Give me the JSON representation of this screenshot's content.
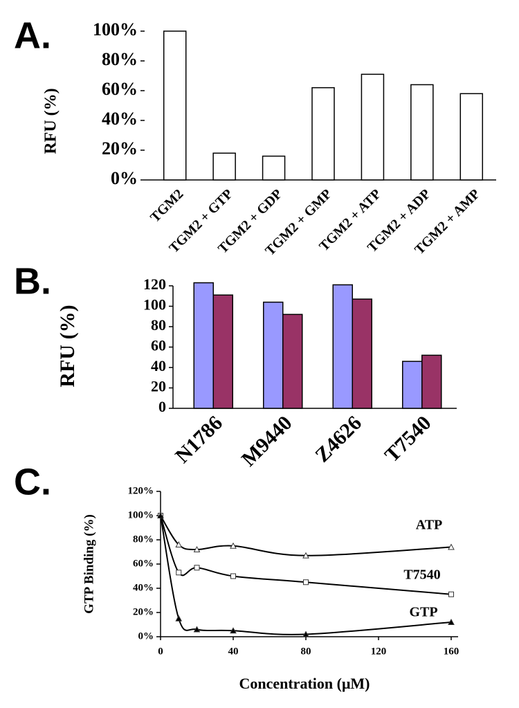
{
  "chart_data": [
    {
      "type": "bar",
      "panel_label": "A.",
      "ylabel": "RFU  (%)",
      "categories": [
        "TGM2",
        "TGM2 + GTP",
        "TGM2 + GDP",
        "TGM2 + GMP",
        "TGM2 + ATP",
        "TGM2 + ADP",
        "TGM2 + AMP"
      ],
      "values": [
        100,
        18,
        16,
        62,
        71,
        64,
        58
      ],
      "color": "#ffffff",
      "ylim": [
        0,
        100
      ],
      "yticks": [
        {
          "value": 0,
          "label": "0%"
        },
        {
          "value": 20,
          "label": "20%"
        },
        {
          "value": 40,
          "label": "40%"
        },
        {
          "value": 60,
          "label": "60%"
        },
        {
          "value": 80,
          "label": "80%"
        },
        {
          "value": 100,
          "label": "100%"
        }
      ]
    },
    {
      "type": "bar",
      "panel_label": "B.",
      "ylabel": "RFU (%)",
      "categories": [
        "N1786",
        "M9440",
        "Z4626",
        "T7540"
      ],
      "series": [
        {
          "color": "#9999ff",
          "values": [
            123,
            104,
            121,
            46
          ]
        },
        {
          "color": "#993366",
          "values": [
            111,
            92,
            107,
            52
          ]
        }
      ],
      "ylim": [
        0,
        120
      ],
      "yticks": [
        0,
        20,
        40,
        60,
        80,
        100,
        120
      ]
    },
    {
      "type": "line",
      "panel_label": "C.",
      "ylabel": "GTP Binding (%)",
      "xlabel": "Concentration (μM)",
      "x": [
        0,
        10,
        20,
        40,
        80,
        160
      ],
      "series": [
        {
          "name": "ATP",
          "color": "#000000",
          "marker": "triangle-open",
          "values": [
            100,
            76,
            72,
            75,
            67,
            74
          ]
        },
        {
          "name": "T7540",
          "color": "#000000",
          "marker": "square-open",
          "values": [
            100,
            53,
            57,
            50,
            45,
            35
          ]
        },
        {
          "name": "GTP",
          "color": "#000000",
          "marker": "triangle-filled",
          "values": [
            100,
            15,
            6,
            5,
            2,
            12
          ]
        }
      ],
      "xlim": [
        0,
        160
      ],
      "xticks": [
        0,
        40,
        80,
        120,
        160
      ],
      "ylim": [
        0,
        120
      ],
      "yticks": [
        {
          "value": 0,
          "label": "0%"
        },
        {
          "value": 20,
          "label": "20%"
        },
        {
          "value": 40,
          "label": "40%"
        },
        {
          "value": 60,
          "label": "60%"
        },
        {
          "value": 80,
          "label": "80%"
        },
        {
          "value": 100,
          "label": "100%"
        },
        {
          "value": 120,
          "label": "120%"
        }
      ]
    }
  ]
}
